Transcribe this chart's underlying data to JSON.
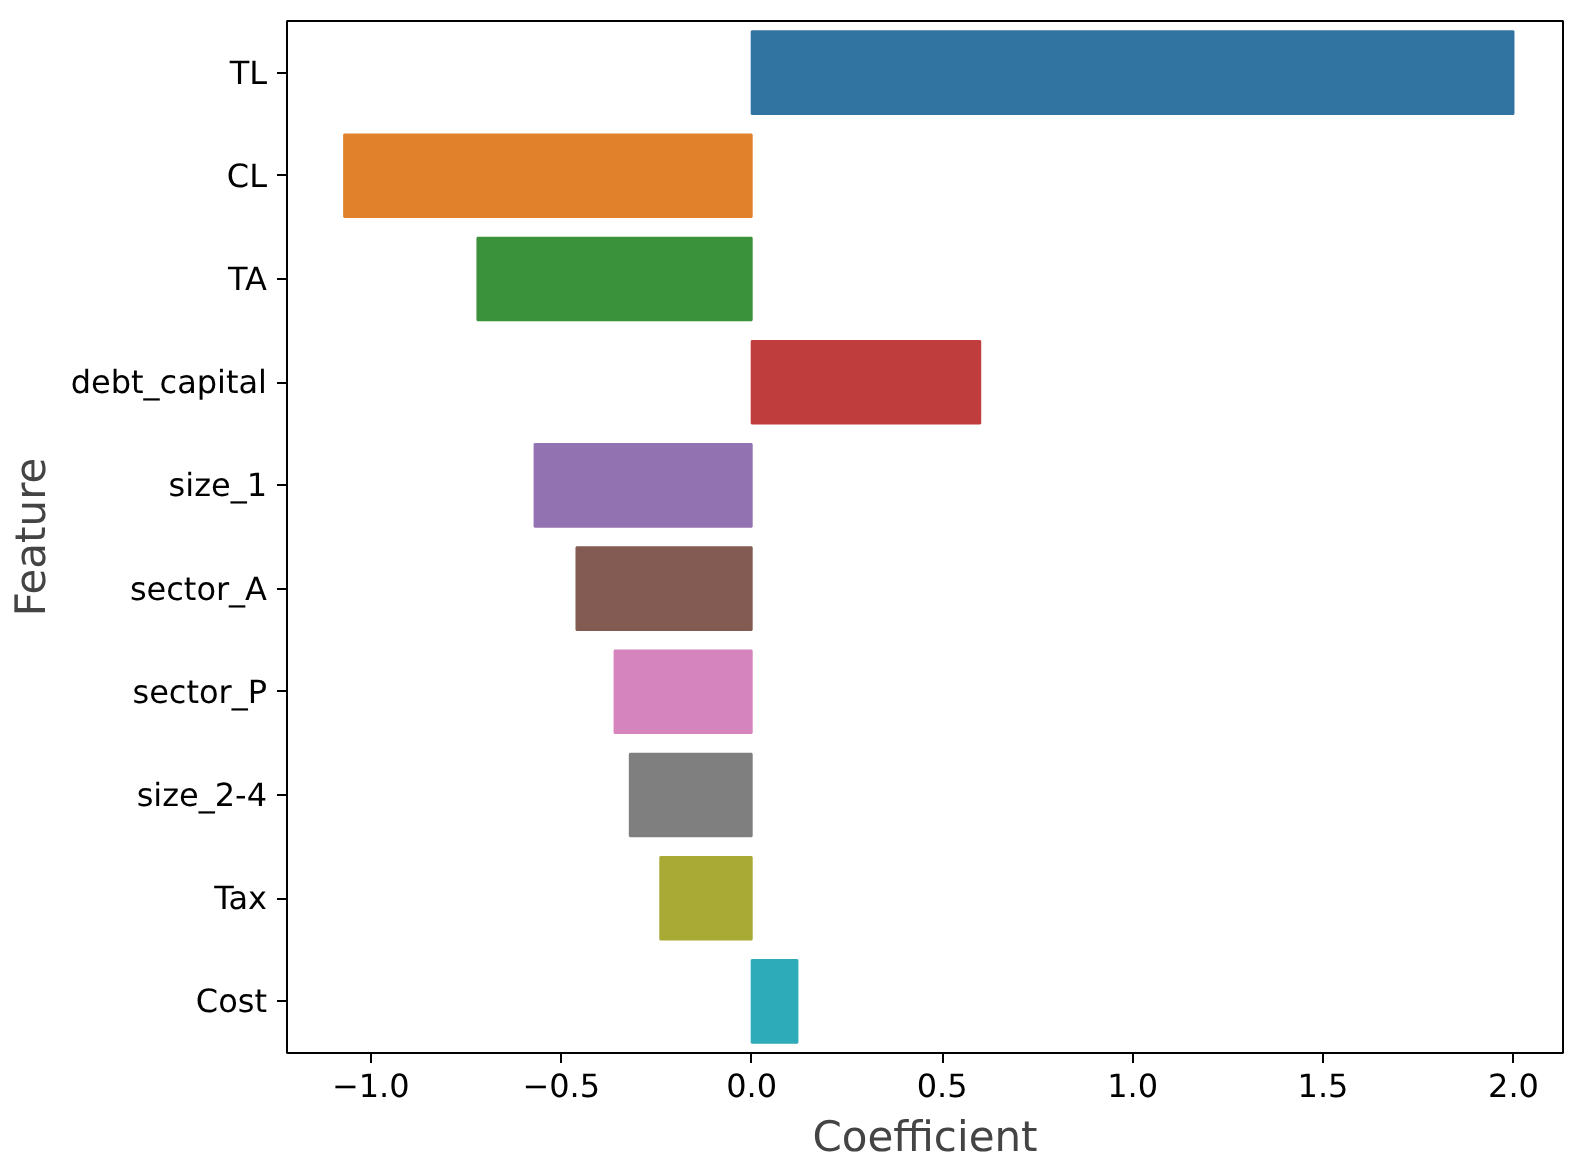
{
  "chart_data": {
    "type": "bar",
    "orientation": "horizontal",
    "xlabel": "Coefficient",
    "ylabel": "Feature",
    "categories": [
      "TL",
      "CL",
      "TA",
      "debt_capital",
      "size_1",
      "sector_A",
      "sector_P",
      "size_2-4",
      "Tax",
      "Cost"
    ],
    "values": [
      2.0,
      -1.07,
      -0.72,
      0.6,
      -0.57,
      -0.46,
      -0.36,
      -0.32,
      -0.24,
      0.12
    ],
    "colors": [
      "#3274a1",
      "#e1812c",
      "#3a923a",
      "#c03d3e",
      "#9372b2",
      "#845b53",
      "#d684bd",
      "#7f7f7f",
      "#a9aa35",
      "#2eabb8"
    ],
    "xlim": [
      -1.22,
      2.13
    ],
    "xticks": [
      {
        "value": -1.0,
        "label": "−1.0"
      },
      {
        "value": -0.5,
        "label": "−0.5"
      },
      {
        "value": 0.0,
        "label": "0.0"
      },
      {
        "value": 0.5,
        "label": "0.5"
      },
      {
        "value": 1.0,
        "label": "1.0"
      },
      {
        "value": 1.5,
        "label": "1.5"
      },
      {
        "value": 2.0,
        "label": "2.0"
      }
    ],
    "grid": false
  }
}
